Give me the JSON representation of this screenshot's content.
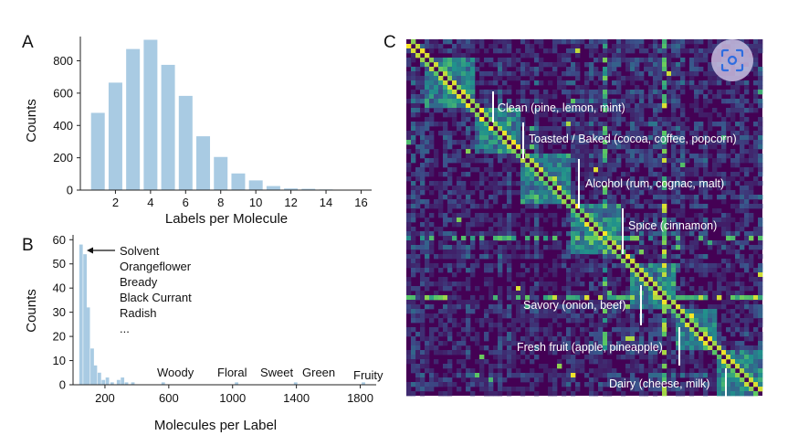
{
  "chart_data": [
    {
      "panel": "A",
      "type": "bar",
      "title": "",
      "xlabel": "Labels per Molecule",
      "ylabel": "Counts",
      "x": [
        1,
        2,
        3,
        4,
        5,
        6,
        7,
        8,
        9,
        10,
        11,
        12,
        13,
        14,
        15,
        16
      ],
      "values": [
        478,
        665,
        873,
        930,
        775,
        583,
        333,
        205,
        103,
        60,
        25,
        10,
        8,
        4,
        2,
        1
      ],
      "xticks": [
        2,
        4,
        6,
        8,
        10,
        12,
        14,
        16
      ],
      "yticks": [
        0,
        200,
        400,
        600,
        800
      ],
      "xlim": [
        0,
        16.6
      ],
      "ylim": [
        0,
        950
      ],
      "color": "#a9cbe3"
    },
    {
      "panel": "B",
      "type": "bar",
      "title": "",
      "xlabel": "Molecules per Label",
      "ylabel": "Counts",
      "bins": [
        {
          "x": 50,
          "count": 58
        },
        {
          "x": 75,
          "count": 54
        },
        {
          "x": 95,
          "count": 32
        },
        {
          "x": 120,
          "count": 15
        },
        {
          "x": 140,
          "count": 8
        },
        {
          "x": 165,
          "count": 5
        },
        {
          "x": 190,
          "count": 2
        },
        {
          "x": 215,
          "count": 3
        },
        {
          "x": 245,
          "count": 1
        },
        {
          "x": 285,
          "count": 2
        },
        {
          "x": 310,
          "count": 3
        },
        {
          "x": 335,
          "count": 1
        },
        {
          "x": 375,
          "count": 1
        },
        {
          "x": 565,
          "count": 1
        },
        {
          "x": 1025,
          "count": 1
        },
        {
          "x": 1395,
          "count": 1
        },
        {
          "x": 1820,
          "count": 1
        }
      ],
      "xticks": [
        200,
        600,
        1000,
        1400,
        1800
      ],
      "yticks": [
        0,
        10,
        20,
        30,
        40,
        50,
        60
      ],
      "xlim": [
        0,
        1900
      ],
      "ylim": [
        0,
        62
      ],
      "color": "#a9cbe3",
      "annotations": [
        {
          "text": "Solvent",
          "x": 50,
          "y": 58,
          "arrow": true
        },
        {
          "text": "Orangeflower"
        },
        {
          "text": "Bready"
        },
        {
          "text": "Black Currant"
        },
        {
          "text": "Radish"
        },
        {
          "text": "..."
        },
        {
          "text": "Woody",
          "x": 585
        },
        {
          "text": "Floral",
          "x": 1030
        },
        {
          "text": "Sweet",
          "x": 1360
        },
        {
          "text": "Green",
          "x": 1480
        },
        {
          "text": "Fruity",
          "x": 1810
        }
      ]
    },
    {
      "panel": "C",
      "type": "heatmap",
      "title": "",
      "colormap": [
        "#440154",
        "#3b528b",
        "#21918c",
        "#5ec962",
        "#fde725"
      ],
      "clusters": [
        "Clean (pine, lemon, mint)",
        "Toasted / Baked (cocoa, coffee, popcorn)",
        "Alcohol (rum, cognac, malt)",
        "Spice (cinnamon)",
        "Savory (onion, beef)",
        "Fresh fruit (apple, pineapple)",
        "Dairy (cheese, milk)"
      ]
    }
  ],
  "panels": {
    "a": "A",
    "b": "B",
    "c": "C"
  },
  "lens_icon": "scan-lens-icon"
}
